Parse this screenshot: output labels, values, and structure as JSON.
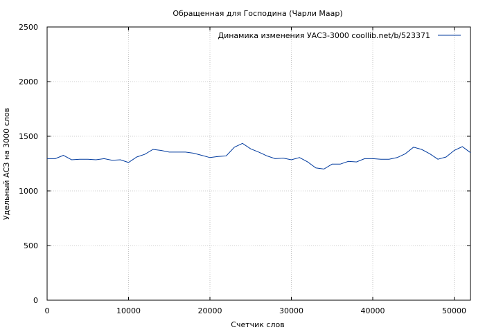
{
  "chart_data": {
    "type": "line",
    "title": "Обращенная для Господина (Чарли Маар)",
    "xlabel": "Счетчик слов",
    "ylabel": "Удельный АСЗ на 3000 слов",
    "xlim": [
      0,
      52000
    ],
    "ylim": [
      0,
      2500
    ],
    "xticks": [
      0,
      10000,
      20000,
      30000,
      40000,
      50000
    ],
    "yticks": [
      0,
      500,
      1000,
      1500,
      2000,
      2500
    ],
    "grid": true,
    "legend_position": "top-right",
    "series": [
      {
        "name": "Динамика изменения УАСЗ-3000  coollib.net/b/523371",
        "color": "#003a9e",
        "x": [
          0,
          1000,
          2000,
          3000,
          4000,
          5000,
          6000,
          7000,
          8000,
          9000,
          10000,
          11000,
          12000,
          13000,
          14000,
          15000,
          16000,
          17000,
          18000,
          19000,
          20000,
          21000,
          22000,
          23000,
          24000,
          25000,
          26000,
          27000,
          28000,
          29000,
          30000,
          31000,
          32000,
          33000,
          34000,
          35000,
          36000,
          37000,
          38000,
          39000,
          40000,
          41000,
          42000,
          43000,
          44000,
          45000,
          46000,
          47000,
          48000,
          49000,
          50000,
          51000,
          52000
        ],
        "values": [
          1295,
          1295,
          1325,
          1285,
          1290,
          1290,
          1285,
          1295,
          1280,
          1285,
          1260,
          1310,
          1335,
          1380,
          1370,
          1355,
          1355,
          1355,
          1345,
          1325,
          1305,
          1315,
          1320,
          1400,
          1435,
          1385,
          1355,
          1320,
          1295,
          1300,
          1285,
          1305,
          1265,
          1210,
          1200,
          1245,
          1245,
          1270,
          1265,
          1295,
          1295,
          1290,
          1290,
          1305,
          1340,
          1400,
          1380,
          1340,
          1290,
          1310,
          1370,
          1405,
          1350
        ]
      }
    ]
  }
}
